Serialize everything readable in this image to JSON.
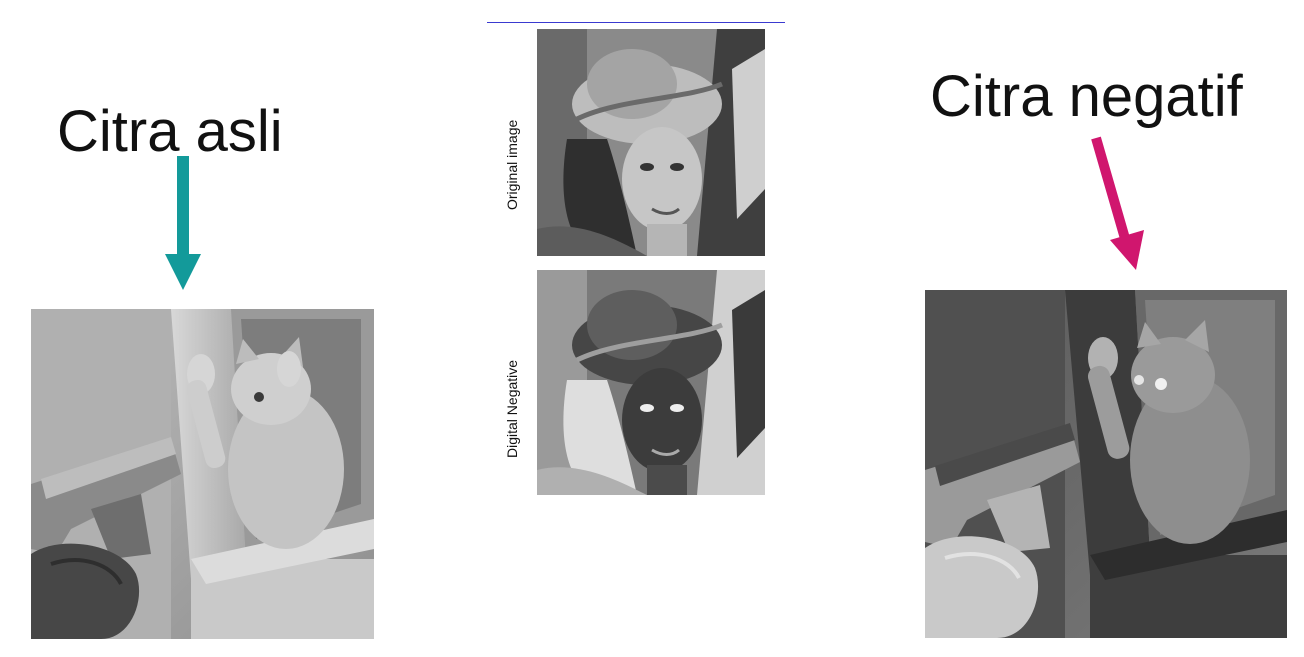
{
  "labels": {
    "left": "Citra asli",
    "right": "Citra negatif"
  },
  "center_panel": {
    "top_caption": "Original image",
    "bottom_caption": "Digital Negative"
  },
  "colors": {
    "left_arrow": "#139a9a",
    "right_arrow": "#d0166e",
    "top_rule": "#3a3ad0"
  },
  "icons": {
    "left_arrow": "arrow-down-icon",
    "right_arrow": "arrow-down-icon"
  }
}
